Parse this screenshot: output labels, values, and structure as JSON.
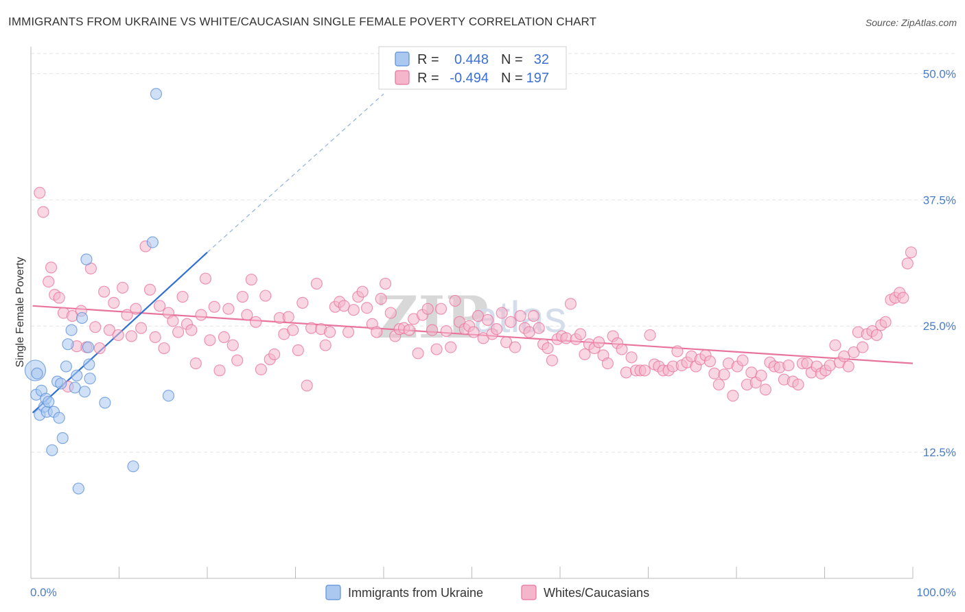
{
  "title": "IMMIGRANTS FROM UKRAINE VS WHITE/CAUCASIAN SINGLE FEMALE POVERTY CORRELATION CHART",
  "source": "Source: ZipAtlas.com",
  "watermark": "ZIPatlas",
  "colors": {
    "blue": "#5b8fd9",
    "blue_fill": "#aac8f0",
    "pink": "#e8739c",
    "pink_fill": "#f4b6cb",
    "tick": "#4a7cc9",
    "grid": "#e3e3e3"
  },
  "legend": {
    "rows": [
      {
        "r_label": "R =",
        "r_value": "0.448",
        "n_label": "N =",
        "n_value": "32"
      },
      {
        "r_label": "R =",
        "r_value": "-0.494",
        "n_label": "N =",
        "n_value": "197"
      }
    ]
  },
  "bottom_legend": [
    "Immigrants from Ukraine",
    "Whites/Caucasians"
  ],
  "chart_data": {
    "type": "scatter",
    "title": "IMMIGRANTS FROM UKRAINE VS WHITE/CAUCASIAN SINGLE FEMALE POVERTY CORRELATION CHART",
    "ylabel": "Single Female Poverty",
    "xlabel": "",
    "xlim": [
      0,
      100
    ],
    "ylim": [
      0,
      52
    ],
    "x_tick_labels": [
      "0.0%",
      "100.0%"
    ],
    "y_ticks": [
      12.5,
      25.0,
      37.5,
      50.0
    ],
    "y_tick_labels": [
      "12.5%",
      "25.0%",
      "37.5%",
      "50.0%"
    ],
    "grid": true,
    "legend_position": "top-center",
    "series": [
      {
        "name": "Immigrants from Ukraine",
        "color": "#5b8fd9",
        "R": 0.448,
        "N": 32,
        "trend": {
          "x": [
            0.2,
            20.0
          ],
          "y": [
            16.4,
            32.3
          ],
          "dashed_to": [
            40.0,
            48.0
          ]
        },
        "points": [
          [
            0.5,
            20.6
          ],
          [
            0.6,
            18.2
          ],
          [
            0.7,
            20.3
          ],
          [
            1.0,
            16.2
          ],
          [
            1.2,
            18.6
          ],
          [
            1.5,
            17.0
          ],
          [
            1.7,
            17.8
          ],
          [
            1.8,
            16.5
          ],
          [
            2.0,
            17.5
          ],
          [
            2.4,
            12.7
          ],
          [
            2.6,
            16.5
          ],
          [
            3.0,
            19.5
          ],
          [
            3.2,
            15.9
          ],
          [
            3.4,
            19.3
          ],
          [
            3.6,
            13.9
          ],
          [
            4.0,
            21.0
          ],
          [
            4.2,
            23.2
          ],
          [
            4.6,
            24.6
          ],
          [
            5.0,
            18.9
          ],
          [
            5.2,
            20.1
          ],
          [
            5.4,
            8.9
          ],
          [
            5.8,
            25.8
          ],
          [
            6.1,
            18.5
          ],
          [
            6.3,
            31.6
          ],
          [
            6.5,
            22.9
          ],
          [
            6.6,
            21.2
          ],
          [
            6.7,
            19.8
          ],
          [
            8.4,
            17.4
          ],
          [
            11.6,
            11.1
          ],
          [
            13.8,
            33.3
          ],
          [
            14.2,
            48.0
          ],
          [
            15.6,
            18.1
          ]
        ]
      },
      {
        "name": "Whites/Caucasians",
        "color": "#e8739c",
        "R": -0.494,
        "N": 197,
        "trend": {
          "x": [
            0.2,
            100.0
          ],
          "y": [
            27.0,
            21.3
          ]
        },
        "points": [
          [
            1.0,
            38.2
          ],
          [
            1.4,
            36.3
          ],
          [
            2.0,
            29.4
          ],
          [
            2.3,
            30.8
          ],
          [
            2.7,
            28.1
          ],
          [
            3.2,
            27.8
          ],
          [
            3.7,
            26.3
          ],
          [
            4.2,
            19.0
          ],
          [
            4.7,
            26.0
          ],
          [
            5.2,
            23.0
          ],
          [
            5.7,
            26.5
          ],
          [
            6.3,
            22.9
          ],
          [
            6.8,
            30.7
          ],
          [
            7.3,
            24.9
          ],
          [
            7.8,
            22.8
          ],
          [
            8.3,
            28.4
          ],
          [
            8.9,
            24.6
          ],
          [
            9.4,
            27.3
          ],
          [
            9.9,
            24.1
          ],
          [
            10.4,
            28.8
          ],
          [
            10.9,
            26.1
          ],
          [
            11.4,
            24.0
          ],
          [
            11.9,
            26.7
          ],
          [
            12.5,
            24.8
          ],
          [
            13.0,
            32.9
          ],
          [
            13.5,
            28.6
          ],
          [
            14.1,
            23.9
          ],
          [
            14.6,
            27.0
          ],
          [
            15.1,
            22.8
          ],
          [
            15.6,
            26.3
          ],
          [
            16.1,
            25.5
          ],
          [
            16.7,
            24.4
          ],
          [
            17.2,
            27.9
          ],
          [
            17.7,
            25.2
          ],
          [
            18.2,
            24.6
          ],
          [
            18.7,
            21.3
          ],
          [
            19.3,
            26.1
          ],
          [
            19.8,
            29.7
          ],
          [
            20.3,
            23.6
          ],
          [
            20.8,
            26.9
          ],
          [
            21.4,
            20.6
          ],
          [
            21.9,
            23.9
          ],
          [
            22.4,
            26.7
          ],
          [
            22.9,
            23.1
          ],
          [
            23.4,
            21.6
          ],
          [
            24.0,
            27.9
          ],
          [
            24.5,
            26.1
          ],
          [
            25.0,
            29.6
          ],
          [
            25.5,
            25.4
          ],
          [
            26.1,
            20.7
          ],
          [
            26.6,
            28.0
          ],
          [
            27.1,
            21.7
          ],
          [
            27.6,
            22.2
          ],
          [
            28.2,
            25.8
          ],
          [
            28.7,
            24.2
          ],
          [
            29.2,
            25.9
          ],
          [
            29.7,
            24.6
          ],
          [
            30.3,
            22.6
          ],
          [
            30.8,
            27.3
          ],
          [
            31.3,
            19.1
          ],
          [
            31.8,
            24.8
          ],
          [
            32.4,
            29.2
          ],
          [
            32.9,
            24.7
          ],
          [
            33.4,
            23.1
          ],
          [
            33.9,
            24.4
          ],
          [
            34.5,
            26.9
          ],
          [
            35.0,
            27.4
          ],
          [
            35.5,
            27.0
          ],
          [
            36.0,
            24.4
          ],
          [
            36.6,
            26.6
          ],
          [
            37.1,
            27.9
          ],
          [
            37.6,
            28.4
          ],
          [
            38.1,
            26.8
          ],
          [
            38.7,
            25.2
          ],
          [
            39.2,
            24.4
          ],
          [
            39.7,
            27.7
          ],
          [
            40.2,
            29.2
          ],
          [
            40.8,
            26.3
          ],
          [
            41.3,
            24.0
          ],
          [
            41.8,
            24.7
          ],
          [
            42.3,
            24.8
          ],
          [
            42.9,
            24.6
          ],
          [
            43.4,
            25.7
          ],
          [
            43.9,
            22.3
          ],
          [
            44.4,
            26.1
          ],
          [
            45.0,
            26.7
          ],
          [
            45.5,
            24.6
          ],
          [
            46.0,
            22.7
          ],
          [
            46.5,
            26.7
          ],
          [
            47.1,
            24.5
          ],
          [
            47.6,
            22.9
          ],
          [
            48.1,
            27.5
          ],
          [
            48.6,
            25.4
          ],
          [
            49.2,
            24.7
          ],
          [
            49.7,
            25.0
          ],
          [
            50.2,
            24.4
          ],
          [
            50.7,
            26.0
          ],
          [
            51.3,
            23.8
          ],
          [
            51.8,
            25.6
          ],
          [
            52.3,
            24.2
          ],
          [
            52.8,
            24.7
          ],
          [
            53.4,
            26.3
          ],
          [
            53.9,
            23.4
          ],
          [
            54.4,
            25.4
          ],
          [
            54.9,
            22.9
          ],
          [
            55.5,
            26.0
          ],
          [
            56.0,
            24.8
          ],
          [
            56.5,
            24.4
          ],
          [
            57.0,
            26.0
          ],
          [
            57.6,
            24.8
          ],
          [
            58.1,
            23.2
          ],
          [
            58.6,
            22.8
          ],
          [
            59.1,
            21.6
          ],
          [
            59.7,
            23.7
          ],
          [
            60.2,
            24.0
          ],
          [
            60.7,
            23.8
          ],
          [
            61.2,
            27.2
          ],
          [
            61.8,
            23.7
          ],
          [
            62.3,
            24.2
          ],
          [
            62.8,
            22.2
          ],
          [
            63.3,
            23.2
          ],
          [
            63.9,
            22.8
          ],
          [
            64.4,
            23.4
          ],
          [
            64.9,
            22.1
          ],
          [
            65.4,
            21.3
          ],
          [
            66.0,
            24.0
          ],
          [
            66.5,
            23.3
          ],
          [
            67.0,
            22.7
          ],
          [
            67.5,
            20.4
          ],
          [
            68.1,
            21.9
          ],
          [
            68.6,
            20.6
          ],
          [
            69.1,
            20.6
          ],
          [
            69.6,
            20.6
          ],
          [
            70.2,
            24.1
          ],
          [
            70.7,
            21.2
          ],
          [
            71.2,
            21.0
          ],
          [
            71.7,
            20.6
          ],
          [
            72.3,
            20.6
          ],
          [
            72.8,
            21.0
          ],
          [
            73.3,
            22.5
          ],
          [
            73.8,
            21.1
          ],
          [
            74.4,
            21.4
          ],
          [
            74.9,
            22.0
          ],
          [
            75.4,
            21.0
          ],
          [
            75.9,
            21.7
          ],
          [
            76.5,
            22.1
          ],
          [
            77.0,
            21.5
          ],
          [
            77.5,
            20.3
          ],
          [
            78.0,
            19.2
          ],
          [
            78.6,
            20.2
          ],
          [
            79.1,
            21.3
          ],
          [
            79.6,
            18.1
          ],
          [
            80.1,
            21.0
          ],
          [
            80.7,
            21.6
          ],
          [
            81.2,
            19.2
          ],
          [
            81.7,
            20.4
          ],
          [
            82.2,
            19.4
          ],
          [
            82.8,
            20.1
          ],
          [
            83.3,
            18.7
          ],
          [
            83.8,
            21.4
          ],
          [
            84.3,
            21.0
          ],
          [
            84.9,
            20.9
          ],
          [
            85.4,
            19.7
          ],
          [
            85.9,
            21.1
          ],
          [
            86.4,
            19.5
          ],
          [
            87.0,
            19.2
          ],
          [
            87.5,
            21.3
          ],
          [
            88.0,
            21.3
          ],
          [
            88.5,
            20.4
          ],
          [
            89.1,
            21.0
          ],
          [
            89.6,
            20.3
          ],
          [
            90.1,
            20.6
          ],
          [
            90.6,
            21.1
          ],
          [
            91.2,
            23.1
          ],
          [
            91.7,
            21.4
          ],
          [
            92.2,
            22.0
          ],
          [
            92.7,
            21.0
          ],
          [
            93.3,
            22.4
          ],
          [
            93.8,
            24.4
          ],
          [
            94.3,
            22.9
          ],
          [
            94.8,
            24.2
          ],
          [
            95.4,
            24.5
          ],
          [
            95.9,
            24.1
          ],
          [
            96.4,
            25.1
          ],
          [
            96.9,
            25.4
          ],
          [
            97.5,
            27.6
          ],
          [
            98.0,
            27.8
          ],
          [
            98.5,
            28.3
          ],
          [
            98.9,
            27.8
          ],
          [
            99.4,
            31.2
          ],
          [
            99.8,
            32.3
          ]
        ]
      }
    ]
  }
}
